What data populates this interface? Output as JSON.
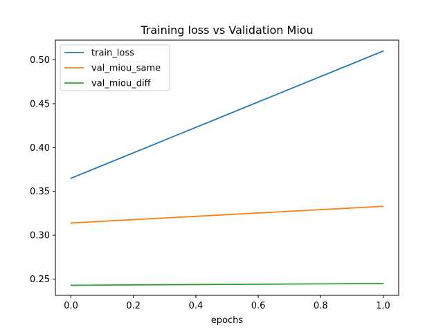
{
  "chart_data": {
    "type": "line",
    "title": "Training loss vs Validation Miou",
    "xlabel": "epochs",
    "ylabel": "",
    "x": [
      0.0,
      1.0
    ],
    "xlim": [
      -0.05,
      1.05
    ],
    "ylim": [
      0.2315,
      0.5225
    ],
    "xticks": [
      0.0,
      0.2,
      0.4,
      0.6,
      0.8,
      1.0
    ],
    "xtick_labels": [
      "0.0",
      "0.2",
      "0.4",
      "0.6",
      "0.8",
      "1.0"
    ],
    "yticks": [
      0.25,
      0.3,
      0.35,
      0.4,
      0.45,
      0.5
    ],
    "ytick_labels": [
      "0.25",
      "0.30",
      "0.35",
      "0.40",
      "0.45",
      "0.50"
    ],
    "grid": false,
    "legend_position": "top-left",
    "series": [
      {
        "name": "train_loss",
        "color": "#1f77b4",
        "values": [
          0.365,
          0.51
        ]
      },
      {
        "name": "val_miou_same",
        "color": "#ff7f0e",
        "values": [
          0.314,
          0.333
        ]
      },
      {
        "name": "val_miou_diff",
        "color": "#2ca02c",
        "values": [
          0.243,
          0.245
        ]
      }
    ]
  }
}
